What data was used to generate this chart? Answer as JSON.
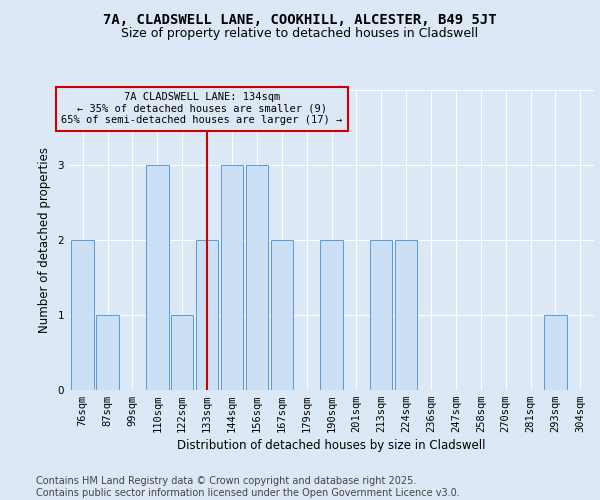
{
  "title_line1": "7A, CLADSWELL LANE, COOKHILL, ALCESTER, B49 5JT",
  "title_line2": "Size of property relative to detached houses in Cladswell",
  "xlabel": "Distribution of detached houses by size in Cladswell",
  "ylabel": "Number of detached properties",
  "categories": [
    "76sqm",
    "87sqm",
    "99sqm",
    "110sqm",
    "122sqm",
    "133sqm",
    "144sqm",
    "156sqm",
    "167sqm",
    "179sqm",
    "190sqm",
    "201sqm",
    "213sqm",
    "224sqm",
    "236sqm",
    "247sqm",
    "258sqm",
    "270sqm",
    "281sqm",
    "293sqm",
    "304sqm"
  ],
  "values": [
    2,
    1,
    0,
    3,
    1,
    2,
    3,
    3,
    2,
    0,
    2,
    0,
    2,
    2,
    0,
    0,
    0,
    0,
    0,
    1,
    0
  ],
  "bar_color": "#cce0f5",
  "bar_edge_color": "#5b9bd5",
  "marker_index": 5,
  "marker_color": "#cc0000",
  "marker_label_line1": "7A CLADSWELL LANE: 134sqm",
  "marker_label_line2": "← 35% of detached houses are smaller (9)",
  "marker_label_line3": "65% of semi-detached houses are larger (17) →",
  "annotation_box_edge_color": "#cc0000",
  "ylim": [
    0,
    4
  ],
  "yticks": [
    0,
    1,
    2,
    3,
    4
  ],
  "footnote_line1": "Contains HM Land Registry data © Crown copyright and database right 2025.",
  "footnote_line2": "Contains public sector information licensed under the Open Government Licence v3.0.",
  "bg_color": "#dce8f5",
  "plot_bg_color": "#dce8f5",
  "title_fontsize": 10,
  "subtitle_fontsize": 9,
  "axis_label_fontsize": 8.5,
  "tick_fontsize": 7.5,
  "annotation_fontsize": 7.5,
  "footnote_fontsize": 7
}
